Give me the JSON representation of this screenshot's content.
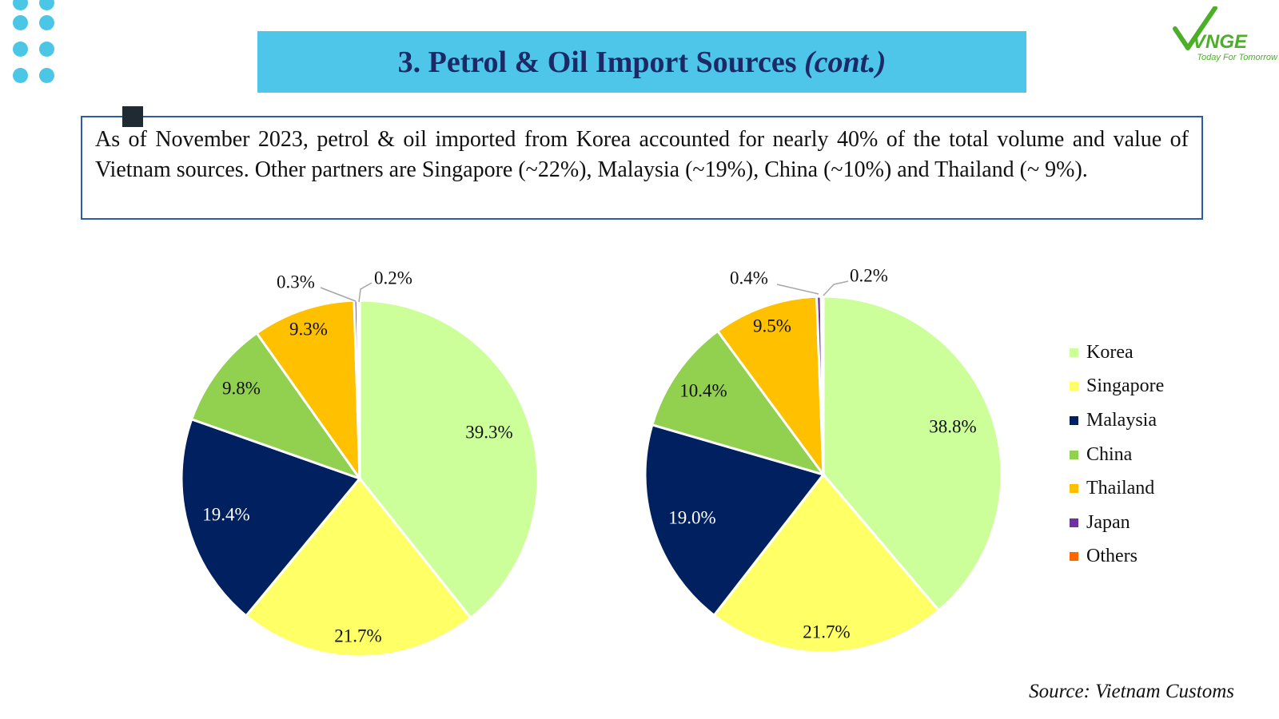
{
  "header": {
    "title_main": "3. Petrol & Oil Import Sources",
    "title_suffix": "(cont.)"
  },
  "logo": {
    "brand": "VNGE",
    "tagline": "Today For Tomorrow"
  },
  "summary": {
    "text": "As of November 2023, petrol & oil imported from Korea accounted for nearly 40% of the total volume and value of Vietnam sources. Other partners are Singapore (~22%), Malaysia (~19%), China (~10%) and Thailand (~ 9%)."
  },
  "source": "Source: Vietnam Customs",
  "chart_data": [
    {
      "type": "pie",
      "categories": [
        "Korea",
        "Singapore",
        "Malaysia",
        "China",
        "Thailand",
        "Japan",
        "Others"
      ],
      "values": [
        39.3,
        21.7,
        19.4,
        9.8,
        9.3,
        0.3,
        0.2
      ],
      "labels": [
        "39.3%",
        "21.7%",
        "19.4%",
        "9.8%",
        "9.3%",
        "0.3%",
        "0.2%"
      ],
      "colors": [
        "#ccff99",
        "#ffff66",
        "#002060",
        "#92d050",
        "#ffc000",
        "#7030a0",
        "#ff6600"
      ],
      "label_colors": [
        "#111111",
        "#111111",
        "#ffffff",
        "#111111",
        "#111111",
        "#111111",
        "#111111"
      ],
      "legend_placement": "right"
    },
    {
      "type": "pie",
      "categories": [
        "Korea",
        "Singapore",
        "Malaysia",
        "China",
        "Thailand",
        "Japan",
        "Others"
      ],
      "values": [
        38.8,
        21.7,
        19.0,
        10.4,
        9.5,
        0.4,
        0.2
      ],
      "labels": [
        "38.8%",
        "21.7%",
        "19.0%",
        "10.4%",
        "9.5%",
        "0.4%",
        "0.2%"
      ],
      "colors": [
        "#ccff99",
        "#ffff66",
        "#002060",
        "#92d050",
        "#ffc000",
        "#7030a0",
        "#ff6600"
      ],
      "label_colors": [
        "#111111",
        "#111111",
        "#ffffff",
        "#111111",
        "#111111",
        "#111111",
        "#111111"
      ],
      "legend_placement": "right"
    }
  ],
  "legend": {
    "items": [
      {
        "label": "Korea",
        "color": "#ccff99"
      },
      {
        "label": "Singapore",
        "color": "#ffff66"
      },
      {
        "label": "Malaysia",
        "color": "#002060"
      },
      {
        "label": "China",
        "color": "#92d050"
      },
      {
        "label": "Thailand",
        "color": "#ffc000"
      },
      {
        "label": "Japan",
        "color": "#7030a0"
      },
      {
        "label": "Others",
        "color": "#ff6600"
      }
    ]
  }
}
